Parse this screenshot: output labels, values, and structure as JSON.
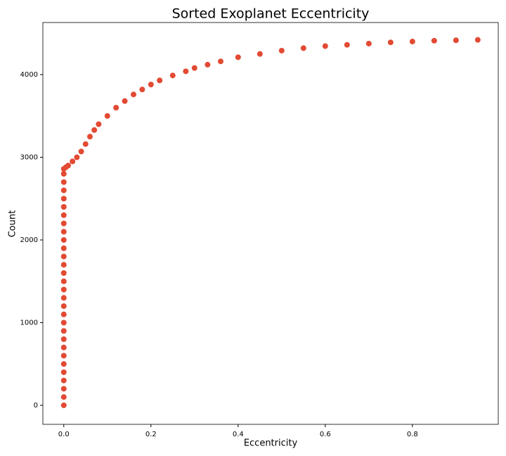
{
  "chart_data": {
    "type": "scatter",
    "title": "Sorted Exoplanet Eccentricity",
    "xlabel": "Eccentricity",
    "ylabel": "Count",
    "color": "#e24a33",
    "x": [
      0,
      0,
      0,
      0,
      0,
      0,
      0,
      0,
      0,
      0,
      0,
      0,
      0,
      0,
      0,
      0,
      0,
      0,
      0,
      0,
      0,
      0,
      0,
      0,
      0,
      0,
      0,
      0,
      0,
      0,
      0.005,
      0.01,
      0.02,
      0.03,
      0.04,
      0.05,
      0.06,
      0.07,
      0.08,
      0.1,
      0.12,
      0.14,
      0.16,
      0.18,
      0.2,
      0.22,
      0.25,
      0.28,
      0.3,
      0.33,
      0.36,
      0.4,
      0.45,
      0.5,
      0.55,
      0.6,
      0.65,
      0.7,
      0.75,
      0.8,
      0.85,
      0.9,
      0.95
    ],
    "y": [
      0,
      100,
      200,
      300,
      400,
      500,
      600,
      700,
      800,
      900,
      1000,
      1100,
      1200,
      1300,
      1400,
      1500,
      1600,
      1700,
      1800,
      1900,
      2000,
      2100,
      2200,
      2300,
      2400,
      2500,
      2600,
      2700,
      2800,
      2860,
      2880,
      2900,
      2950,
      3000,
      3070,
      3160,
      3250,
      3330,
      3400,
      3500,
      3600,
      3680,
      3760,
      3820,
      3880,
      3930,
      3990,
      4040,
      4080,
      4120,
      4160,
      4210,
      4250,
      4290,
      4320,
      4345,
      4360,
      4375,
      4390,
      4400,
      4410,
      4415,
      4420
    ],
    "xlim": [
      -0.048,
      0.997
    ],
    "ylim": [
      -230,
      4630
    ],
    "xticks": [
      {
        "value": 0,
        "label": "0.0"
      },
      0.2,
      0.4,
      0.6,
      0.8
    ],
    "yticks": [
      0,
      1000,
      2000,
      3000,
      4000
    ]
  }
}
